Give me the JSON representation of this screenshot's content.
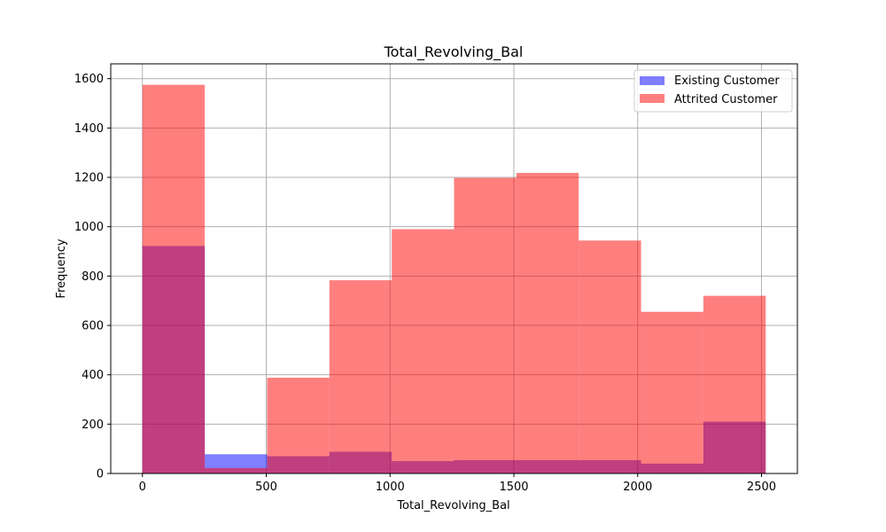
{
  "chart_data": {
    "type": "bar",
    "title": "Total_Revolving_Bal",
    "xlabel": "Total_Revolving_Bal",
    "ylabel": "Frequency",
    "xlim": [
      -128,
      2645
    ],
    "ylim": [
      0,
      1660
    ],
    "xticks": [
      0,
      500,
      1000,
      1500,
      2000,
      2500
    ],
    "yticks": [
      0,
      200,
      400,
      600,
      800,
      1000,
      1200,
      1400,
      1600
    ],
    "grid": true,
    "legend_position": "top-right",
    "series": [
      {
        "name": "Existing Customer",
        "color": "#0000ff",
        "opacity": 0.5,
        "bins": [
          {
            "x0": 0,
            "x1": 251.7,
            "value": 922
          },
          {
            "x0": 251.7,
            "x1": 503.4,
            "value": 78
          },
          {
            "x0": 503.4,
            "x1": 755.1,
            "value": 70
          },
          {
            "x0": 755.1,
            "x1": 1006.8,
            "value": 88
          },
          {
            "x0": 1006.8,
            "x1": 1258.5,
            "value": 50
          },
          {
            "x0": 1258.5,
            "x1": 1510.2,
            "value": 54
          },
          {
            "x0": 1510.2,
            "x1": 1761.9,
            "value": 54
          },
          {
            "x0": 1761.9,
            "x1": 2013.6,
            "value": 54
          },
          {
            "x0": 2013.6,
            "x1": 2265.3,
            "value": 40
          },
          {
            "x0": 2265.3,
            "x1": 2517,
            "value": 210
          }
        ]
      },
      {
        "name": "Attrited Customer",
        "color": "#ff0000",
        "opacity": 0.5,
        "bins": [
          {
            "x0": 0,
            "x1": 251.7,
            "value": 1575
          },
          {
            "x0": 251.7,
            "x1": 503.4,
            "value": 22
          },
          {
            "x0": 503.4,
            "x1": 755.1,
            "value": 388
          },
          {
            "x0": 755.1,
            "x1": 1006.8,
            "value": 783
          },
          {
            "x0": 1006.8,
            "x1": 1258.5,
            "value": 990
          },
          {
            "x0": 1258.5,
            "x1": 1510.2,
            "value": 1198
          },
          {
            "x0": 1510.2,
            "x1": 1761.9,
            "value": 1218
          },
          {
            "x0": 1761.9,
            "x1": 2013.6,
            "value": 944
          },
          {
            "x0": 2013.6,
            "x1": 2265.3,
            "value": 655
          },
          {
            "x0": 2265.3,
            "x1": 2517,
            "value": 720
          }
        ]
      }
    ]
  }
}
